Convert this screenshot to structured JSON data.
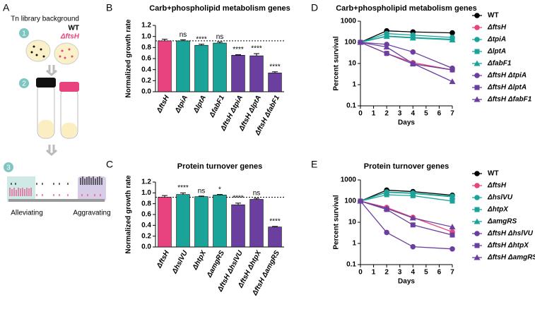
{
  "panel_labels": [
    "A",
    "B",
    "C",
    "D",
    "E"
  ],
  "diagram": {
    "heading": "Tn library background",
    "wt": "WT",
    "mutant": "ΔftsH",
    "steps": [
      "1",
      "2",
      "3"
    ],
    "left_label": "Alleviating",
    "right_label": "Aggravating"
  },
  "chart_data": [
    {
      "type": "bar",
      "title": "Carb+phospholipid metabolism genes",
      "y_label": "Normalized growth rate",
      "categories": [
        "ΔftsH",
        "ΔtpiA",
        "ΔlptA",
        "ΔfabF1",
        "ΔftsH ΔtpiA",
        "ΔftsH ΔlptA",
        "ΔftsH ΔfabF1"
      ],
      "values": [
        0.92,
        0.92,
        0.84,
        0.88,
        0.66,
        0.65,
        0.34
      ],
      "errors": [
        0.03,
        0.02,
        0.02,
        0.02,
        0.01,
        0.04,
        0.02
      ],
      "annotations": [
        null,
        "ns",
        "****",
        "ns",
        "****",
        "****",
        "****"
      ],
      "colors": [
        "#e8437e",
        "#19a399",
        "#19a399",
        "#19a399",
        "#6b3fa0",
        "#6b3fa0",
        "#6b3fa0"
      ],
      "reference_line": 0.92,
      "ylim": [
        0,
        1.2
      ],
      "yticks": [
        {
          "value": 0,
          "label": "0.0"
        },
        0.2,
        0.4,
        0.6,
        0.8,
        {
          "value": 1,
          "label": "1.0"
        },
        1.2
      ]
    },
    {
      "type": "bar",
      "title": "Protein turnover genes",
      "y_label": "Normalized growth rate",
      "categories": [
        "ΔftsH",
        "ΔhslVU",
        "ΔhtpX",
        "ΔamgRS",
        "ΔftsH ΔhslVU",
        "ΔftsH ΔhtpX",
        "ΔftsH ΔamgRS"
      ],
      "values": [
        0.92,
        0.97,
        0.93,
        0.96,
        0.78,
        0.88,
        0.37
      ],
      "errors": [
        0.03,
        0.03,
        0.01,
        0.01,
        0.03,
        0.02,
        0.01
      ],
      "annotations": [
        null,
        "****",
        "ns",
        "*",
        "****",
        "ns",
        "****"
      ],
      "colors": [
        "#e8437e",
        "#19a399",
        "#19a399",
        "#19a399",
        "#6b3fa0",
        "#6b3fa0",
        "#6b3fa0"
      ],
      "reference_line": 0.92,
      "ylim": [
        0,
        1.2
      ],
      "yticks": [
        {
          "value": 0,
          "label": "0.0"
        },
        0.2,
        0.4,
        0.6,
        0.8,
        {
          "value": 1,
          "label": "1.0"
        },
        1.2
      ]
    },
    {
      "type": "line",
      "title": "Carb+phospholipid metabolism genes",
      "x_label": "Days",
      "y_label": "Percent survival",
      "log_y": true,
      "x": [
        0,
        2,
        4,
        7
      ],
      "xlim": [
        0,
        7
      ],
      "xticks": [
        0,
        1,
        2,
        3,
        4,
        5,
        6,
        7
      ],
      "ylim": [
        0.1,
        1000
      ],
      "yticks": [
        0.1,
        1,
        10,
        100,
        1000
      ],
      "series": [
        {
          "name": "WT",
          "color": "#000000",
          "marker": "circle",
          "values": [
            100,
            350,
            310,
            280
          ]
        },
        {
          "name": "ΔftsH",
          "color": "#e8437e",
          "marker": "circle",
          "values": [
            100,
            30,
            11,
            5
          ]
        },
        {
          "name": "ΔtpiA",
          "color": "#19a399",
          "marker": "circle",
          "values": [
            100,
            260,
            220,
            170
          ]
        },
        {
          "name": "ΔlptA",
          "color": "#19a399",
          "marker": "square",
          "values": [
            100,
            200,
            170,
            140
          ]
        },
        {
          "name": "ΔfabF1",
          "color": "#19a399",
          "marker": "triangle",
          "values": [
            100,
            190,
            160,
            130
          ]
        },
        {
          "name": "ΔftsH ΔtpiA",
          "color": "#6b3fa0",
          "marker": "circle",
          "values": [
            100,
            80,
            35,
            6
          ]
        },
        {
          "name": "ΔftsH ΔlptA",
          "color": "#6b3fa0",
          "marker": "square",
          "values": [
            100,
            30,
            9.5,
            5
          ]
        },
        {
          "name": "ΔftsH ΔfabF1",
          "color": "#6b3fa0",
          "marker": "triangle",
          "values": [
            100,
            60,
            10,
            1.4
          ]
        }
      ]
    },
    {
      "type": "line",
      "title": "Protein turnover genes",
      "x_label": "Days",
      "y_label": "Percent survival",
      "log_y": true,
      "x": [
        0,
        2,
        4,
        7
      ],
      "xlim": [
        0,
        7
      ],
      "xticks": [
        0,
        1,
        2,
        3,
        4,
        5,
        6,
        7
      ],
      "ylim": [
        0.1,
        1000
      ],
      "yticks": [
        0.1,
        1,
        10,
        100,
        1000
      ],
      "series": [
        {
          "name": "WT",
          "color": "#000000",
          "marker": "circle",
          "values": [
            100,
            330,
            280,
            190
          ]
        },
        {
          "name": "ΔftsH",
          "color": "#e8437e",
          "marker": "circle",
          "values": [
            100,
            50,
            17,
            3.5
          ]
        },
        {
          "name": "ΔhslVU",
          "color": "#19a399",
          "marker": "circle",
          "values": [
            100,
            270,
            240,
            170
          ]
        },
        {
          "name": "ΔhtpX",
          "color": "#19a399",
          "marker": "square",
          "values": [
            100,
            200,
            180,
            100
          ]
        },
        {
          "name": "ΔamgRS",
          "color": "#19a399",
          "marker": "triangle",
          "values": [
            100,
            260,
            230,
            160
          ]
        },
        {
          "name": "ΔftsH ΔhslVU",
          "color": "#6b3fa0",
          "marker": "circle",
          "values": [
            100,
            3.3,
            0.7,
            0.55
          ]
        },
        {
          "name": "ΔftsH ΔhtpX",
          "color": "#6b3fa0",
          "marker": "square",
          "values": [
            100,
            40,
            7.5,
            2.5
          ]
        },
        {
          "name": "ΔftsH ΔamgRS",
          "color": "#6b3fa0",
          "marker": "triangle",
          "values": [
            100,
            45,
            16,
            6
          ]
        }
      ]
    }
  ]
}
